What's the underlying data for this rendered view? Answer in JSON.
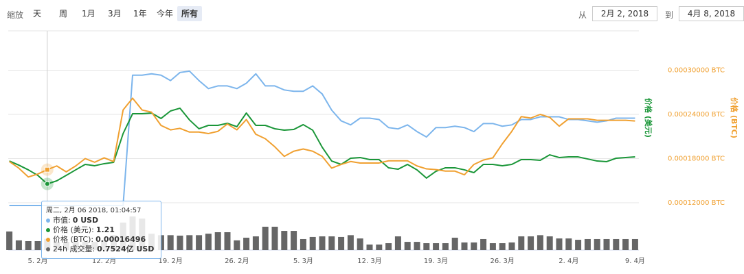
{
  "toolbar": {
    "zoom_label": "缩放",
    "buttons": [
      "天",
      "周",
      "1月",
      "3月",
      "1年",
      "今年",
      "所有"
    ],
    "active": 6,
    "from_label": "从",
    "from": "2月 2, 2018",
    "to_label": "到",
    "to": "4月 8, 2018"
  },
  "chart_data": {
    "type": "line",
    "categories": [
      null,
      null,
      null,
      "5. 2月",
      null,
      null,
      null,
      null,
      null,
      null,
      "12. 2月",
      null,
      null,
      null,
      null,
      null,
      null,
      "19. 2月",
      null,
      null,
      null,
      null,
      null,
      null,
      "26. 2月",
      null,
      null,
      null,
      null,
      null,
      null,
      "5. 3月",
      null,
      null,
      null,
      null,
      null,
      null,
      "12. 3月",
      null,
      null,
      null,
      null,
      null,
      null,
      "19. 3月",
      null,
      null,
      null,
      null,
      null,
      null,
      "26. 3月",
      null,
      null,
      null,
      null,
      null,
      null,
      "2. 4月",
      null,
      null,
      null,
      null,
      null,
      null,
      "9. 4月"
    ],
    "series": [
      {
        "color": "#7cb5ec",
        "axis": "y3",
        "values": [
          0,
          0,
          0,
          0,
          0,
          0,
          0,
          0,
          0,
          0,
          0,
          0,
          0,
          97000000,
          97000000,
          98000000,
          97000000,
          93000000,
          99000000,
          100000000,
          93000000,
          87000000,
          89000000,
          89000000,
          87000000,
          91000000,
          98000000,
          89000000,
          89000000,
          86000000,
          85000000,
          85000000,
          89000000,
          83000000,
          71000000,
          63000000,
          60000000,
          65000000,
          65000000,
          64000000,
          58000000,
          57000000,
          60000000,
          55000000,
          51000000,
          58000000,
          58000000,
          59000000,
          58000000,
          55000000,
          61000000,
          61000000,
          59000000,
          60000000,
          64000000,
          64000000,
          66000000,
          66000000,
          66000000,
          64000000,
          64000000,
          63000000,
          62000000,
          63000000,
          65000000,
          65000000,
          65000000
        ]
      },
      {
        "color": "#1a9638",
        "axis": "y2",
        "values": [
          1.433,
          1.393,
          1.347,
          1.293,
          1.21,
          1.24,
          1.293,
          1.347,
          1.4,
          1.387,
          1.407,
          1.42,
          1.7,
          1.893,
          1.893,
          1.9,
          1.847,
          1.92,
          1.947,
          1.833,
          1.747,
          1.78,
          1.78,
          1.8,
          1.767,
          1.9,
          1.78,
          1.78,
          1.747,
          1.733,
          1.74,
          1.787,
          1.733,
          1.567,
          1.433,
          1.4,
          1.46,
          1.467,
          1.447,
          1.447,
          1.367,
          1.353,
          1.4,
          1.347,
          1.267,
          1.333,
          1.367,
          1.367,
          1.347,
          1.32,
          1.4,
          1.4,
          1.387,
          1.4,
          1.447,
          1.447,
          1.44,
          1.493,
          1.467,
          1.473,
          1.473,
          1.453,
          1.433,
          1.427,
          1.46,
          1.467,
          1.473
        ]
      },
      {
        "color": "#f0a030",
        "axis": "y",
        "values": [
          0.000176,
          0.000167,
          0.000155,
          0.000159,
          0.00016496,
          0.00017,
          0.000162,
          0.00017,
          0.00018,
          0.000175,
          0.000181,
          0.000176,
          0.000246,
          0.000262,
          0.000246,
          0.000243,
          0.000225,
          0.000219,
          0.000221,
          0.000216,
          0.000216,
          0.000214,
          0.000217,
          0.000227,
          0.000219,
          0.000233,
          0.000213,
          0.000207,
          0.000196,
          0.000183,
          0.00019,
          0.000193,
          0.00019,
          0.000183,
          0.000167,
          0.000172,
          0.000176,
          0.000174,
          0.000174,
          0.000174,
          0.000177,
          0.000177,
          0.000177,
          0.00017,
          0.000166,
          0.000165,
          0.000163,
          0.000163,
          0.000158,
          0.000172,
          0.000178,
          0.000181,
          0.0002,
          0.000217,
          0.000237,
          0.000235,
          0.00024,
          0.000236,
          0.000224,
          0.000234,
          0.000234,
          0.000234,
          0.000232,
          0.000232,
          0.000232,
          0.000232,
          0.000231
        ]
      },
      {
        "color": "#666666",
        "axis": "y4",
        "type": "bar",
        "values": [
          1.25,
          0.65,
          0.6,
          0.6,
          0.7524,
          0.55,
          0.55,
          0.55,
          0.55,
          0.55,
          0.65,
          1.0,
          1.85,
          2.26,
          2.12,
          1.1,
          1.0,
          1.0,
          0.97,
          1.0,
          1.0,
          1.1,
          1.2,
          1.2,
          0.65,
          0.83,
          0.92,
          1.57,
          1.57,
          1.29,
          1.29,
          0.74,
          0.88,
          0.92,
          0.92,
          0.88,
          1.0,
          0.78,
          0.37,
          0.37,
          0.46,
          0.92,
          0.55,
          0.55,
          0.46,
          0.46,
          0.46,
          0.83,
          0.51,
          0.51,
          0.74,
          0.46,
          0.46,
          0.51,
          0.92,
          0.92,
          1.0,
          0.92,
          0.78,
          0.78,
          0.69,
          0.74,
          0.74,
          0.74,
          0.74,
          0.74,
          0.74
        ]
      }
    ],
    "ylim": [
      0.00012,
      0.00036
    ],
    "yticks": [
      {
        "value": 0.00012,
        "label": "0.00012000 BTC"
      },
      {
        "value": 0.00018,
        "label": "0.00018000 BTC"
      },
      {
        "value": 0.00024,
        "label": "0.00024000 BTC"
      },
      {
        "value": 0.0003,
        "label": "0.00030000 BTC"
      }
    ],
    "ylabel": "价格 (BTC)",
    "y2lim": [
      1,
      2.7
    ],
    "y2label": "价格 (美元)",
    "y3lim": [
      0,
      130000000
    ],
    "y4lim": [
      0,
      3
    ],
    "grid": true,
    "tooltip": {
      "index": 4,
      "date": "周二, 2月 06 2018, 01:04:57",
      "rows": [
        {
          "label": "市值:",
          "value": "0 USD"
        },
        {
          "label": "价格 (美元):",
          "value": "1.21"
        },
        {
          "label": "价格 (BTC):",
          "value": "0.00016496"
        },
        {
          "label": "24h 成交量:",
          "value": "0.7524亿 USD"
        }
      ]
    }
  }
}
